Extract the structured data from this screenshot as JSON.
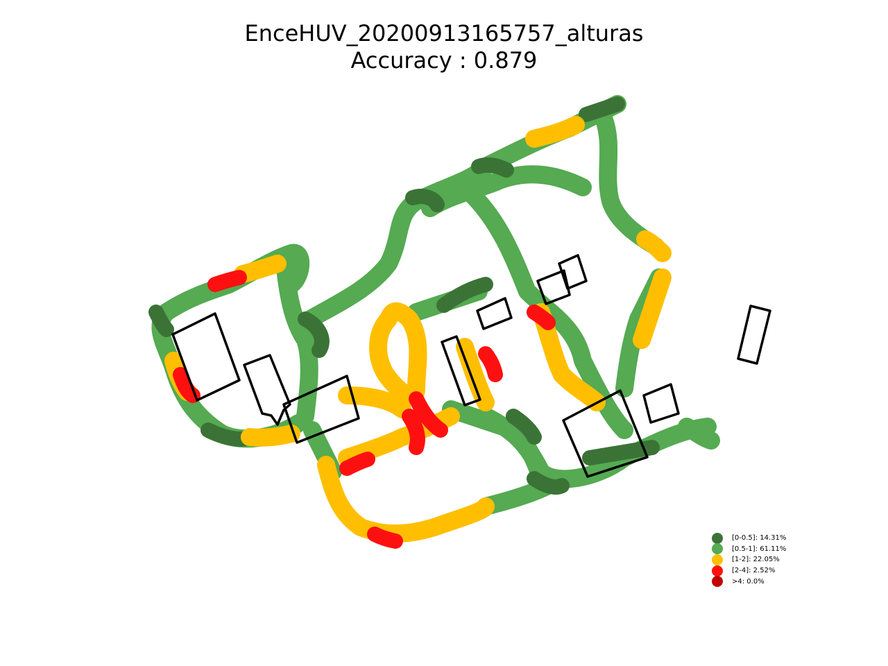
{
  "title": {
    "line1": "EnceHUV_20200913165757_alturas",
    "line2": "Accuracy : 0.879"
  },
  "colors": {
    "class_0_05": "#3b7337",
    "class_05_1": "#55aa52",
    "class_1_2": "#ffbf00",
    "class_2_4": "#ff1010",
    "class_gt4": "#c00000",
    "outline": "#000000"
  },
  "legend": [
    {
      "label": "[0-0.5]: 14.31%",
      "color": "#3b7337",
      "share": 14.31
    },
    {
      "label": "[0.5-1]: 61.11%",
      "color": "#55aa52",
      "share": 61.11
    },
    {
      "label": "[1-2]: 22.05%",
      "color": "#ffbf00",
      "share": 22.05
    },
    {
      "label": "[2-4]: 2.52%",
      "color": "#ff1010",
      "share": 2.52
    },
    {
      "label": ">4: 0.0%",
      "color": "#c00000",
      "share": 0.0
    }
  ]
}
